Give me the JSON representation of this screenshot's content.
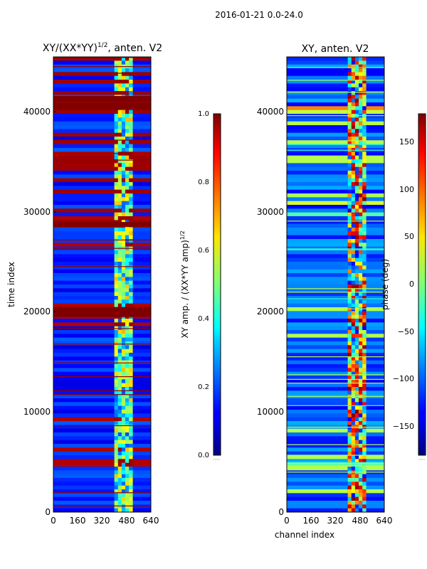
{
  "suptitle": "2016-01-21 0.0-24.0",
  "chart_data": [
    {
      "type": "heatmap",
      "title": "XY/(XX*YY)",
      "title_exponent": "1/2",
      "title_suffix": ", anten. V2",
      "xlabel": "",
      "ylabel": "time index",
      "xlim": [
        0,
        640
      ],
      "ylim": [
        0,
        45500
      ],
      "xticks": [
        "0",
        "160",
        "320",
        "480",
        "640"
      ],
      "yticks": [
        "0",
        "10000",
        "20000",
        "30000",
        "40000"
      ],
      "colorbar": {
        "label": "XY amp. / (XX*YY amp)",
        "label_exponent": "1/2",
        "range": [
          0.0,
          1.0
        ],
        "ticks": [
          "0.0",
          "0.2",
          "0.4",
          "0.6",
          "0.8",
          "1.0"
        ],
        "colormap": "jet"
      },
      "features": {
        "saturated_time_bands": [
          [
            28500,
            29000
          ],
          [
            40200,
            41600
          ],
          [
            19500,
            20500
          ]
        ],
        "high_value_region_time": [
          28500,
          45500
        ],
        "active_channel_band": [
          400,
          520
        ]
      }
    },
    {
      "type": "heatmap",
      "title": "XY, anten. V2",
      "xlabel": "channel index",
      "ylabel": "",
      "xlim": [
        0,
        640
      ],
      "ylim": [
        0,
        45500
      ],
      "xticks": [
        "0",
        "160",
        "320",
        "480",
        "640"
      ],
      "yticks": [
        "0",
        "10000",
        "20000",
        "30000",
        "40000"
      ],
      "colorbar": {
        "label": "phase (deg)",
        "range": [
          -180,
          180
        ],
        "ticks": [
          "−150",
          "−100",
          "−50",
          "0",
          "50",
          "100",
          "150"
        ],
        "colormap": "jet"
      },
      "features": {
        "bright_time_bands": [
          [
            29500,
            33000
          ],
          [
            38500,
            40500
          ]
        ],
        "active_channel_band": [
          400,
          520
        ]
      }
    }
  ]
}
